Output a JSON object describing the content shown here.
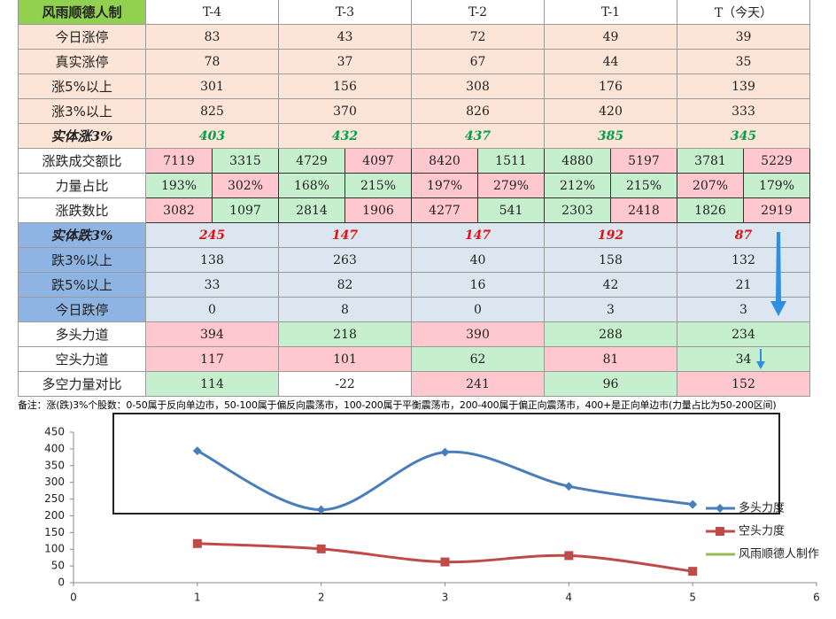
{
  "table": {
    "header": [
      "风雨顺德人制",
      "T-4",
      "T-3",
      "T-2",
      "T-1",
      "T（今天）"
    ],
    "rows": [
      {
        "label": "今日涨停",
        "cells": [
          "83",
          "43",
          "72",
          "49",
          "39"
        ]
      },
      {
        "label": "真实涨停",
        "cells": [
          "78",
          "37",
          "67",
          "44",
          "35"
        ]
      },
      {
        "label": "涨5%以上",
        "cells": [
          "301",
          "156",
          "308",
          "176",
          "139"
        ]
      },
      {
        "label": "涨3%以上",
        "cells": [
          "825",
          "370",
          "826",
          "420",
          "333"
        ]
      },
      {
        "label": "实体涨3%",
        "cells": [
          "403",
          "432",
          "437",
          "385",
          "345"
        ]
      },
      {
        "label": "涨跌成交额比",
        "cells": [
          [
            "7119",
            "3315"
          ],
          [
            "4729",
            "4097"
          ],
          [
            "8420",
            "1511"
          ],
          [
            "4880",
            "5197"
          ],
          [
            "3781",
            "5229"
          ]
        ]
      },
      {
        "label": "力量占比",
        "cells": [
          [
            "193%",
            "302%"
          ],
          [
            "168%",
            "215%"
          ],
          [
            "197%",
            "279%"
          ],
          [
            "212%",
            "215%"
          ],
          [
            "207%",
            "179%"
          ]
        ]
      },
      {
        "label": "涨跌数比",
        "cells": [
          [
            "3082",
            "1097"
          ],
          [
            "2814",
            "1906"
          ],
          [
            "4277",
            "541"
          ],
          [
            "2303",
            "2418"
          ],
          [
            "1826",
            "2919"
          ]
        ]
      },
      {
        "label": "实体跌3%",
        "cells": [
          "245",
          "147",
          "147",
          "192",
          "87"
        ]
      },
      {
        "label": "跌3%以上",
        "cells": [
          "138",
          "263",
          "40",
          "158",
          "132"
        ]
      },
      {
        "label": "跌5%以上",
        "cells": [
          "33",
          "82",
          "16",
          "42",
          "21"
        ]
      },
      {
        "label": "今日跌停",
        "cells": [
          "0",
          "8",
          "0",
          "3",
          "3"
        ]
      },
      {
        "label": "多头力道",
        "cells": [
          "394",
          "218",
          "390",
          "288",
          "234"
        ]
      },
      {
        "label": "空头力道",
        "cells": [
          "117",
          "101",
          "62",
          "81",
          "34"
        ]
      },
      {
        "label": "多空力量对比",
        "cells": [
          "114",
          "-22",
          "241",
          "96",
          "152"
        ]
      }
    ],
    "note": "备注：涨(跌)3%个股数：0-50属于反向单边市，50-100属于偏反向震荡市，100-200属于平衡震荡市，200-400属于偏正向震荡市，400+是正向单边市(力量占比为50-200区间)"
  },
  "chart_data": {
    "type": "line",
    "x": [
      1,
      2,
      3,
      4,
      5
    ],
    "series": [
      {
        "name": "多头力度",
        "color": "#4a7ebb",
        "values": [
          394,
          218,
          390,
          288,
          234
        ]
      },
      {
        "name": "空头力度",
        "color": "#be4b48",
        "values": [
          117,
          101,
          62,
          81,
          34
        ]
      },
      {
        "name": "风雨顺德人制作",
        "color": "#98b954",
        "values": [
          null,
          null,
          null,
          null,
          null
        ]
      }
    ],
    "xlim": [
      0,
      6
    ],
    "xticks": [
      0,
      1,
      2,
      3,
      4,
      5,
      6
    ],
    "ylim": [
      0,
      450
    ],
    "yticks": [
      0,
      50,
      100,
      150,
      200,
      250,
      300,
      350,
      400,
      450
    ],
    "grid": false
  }
}
